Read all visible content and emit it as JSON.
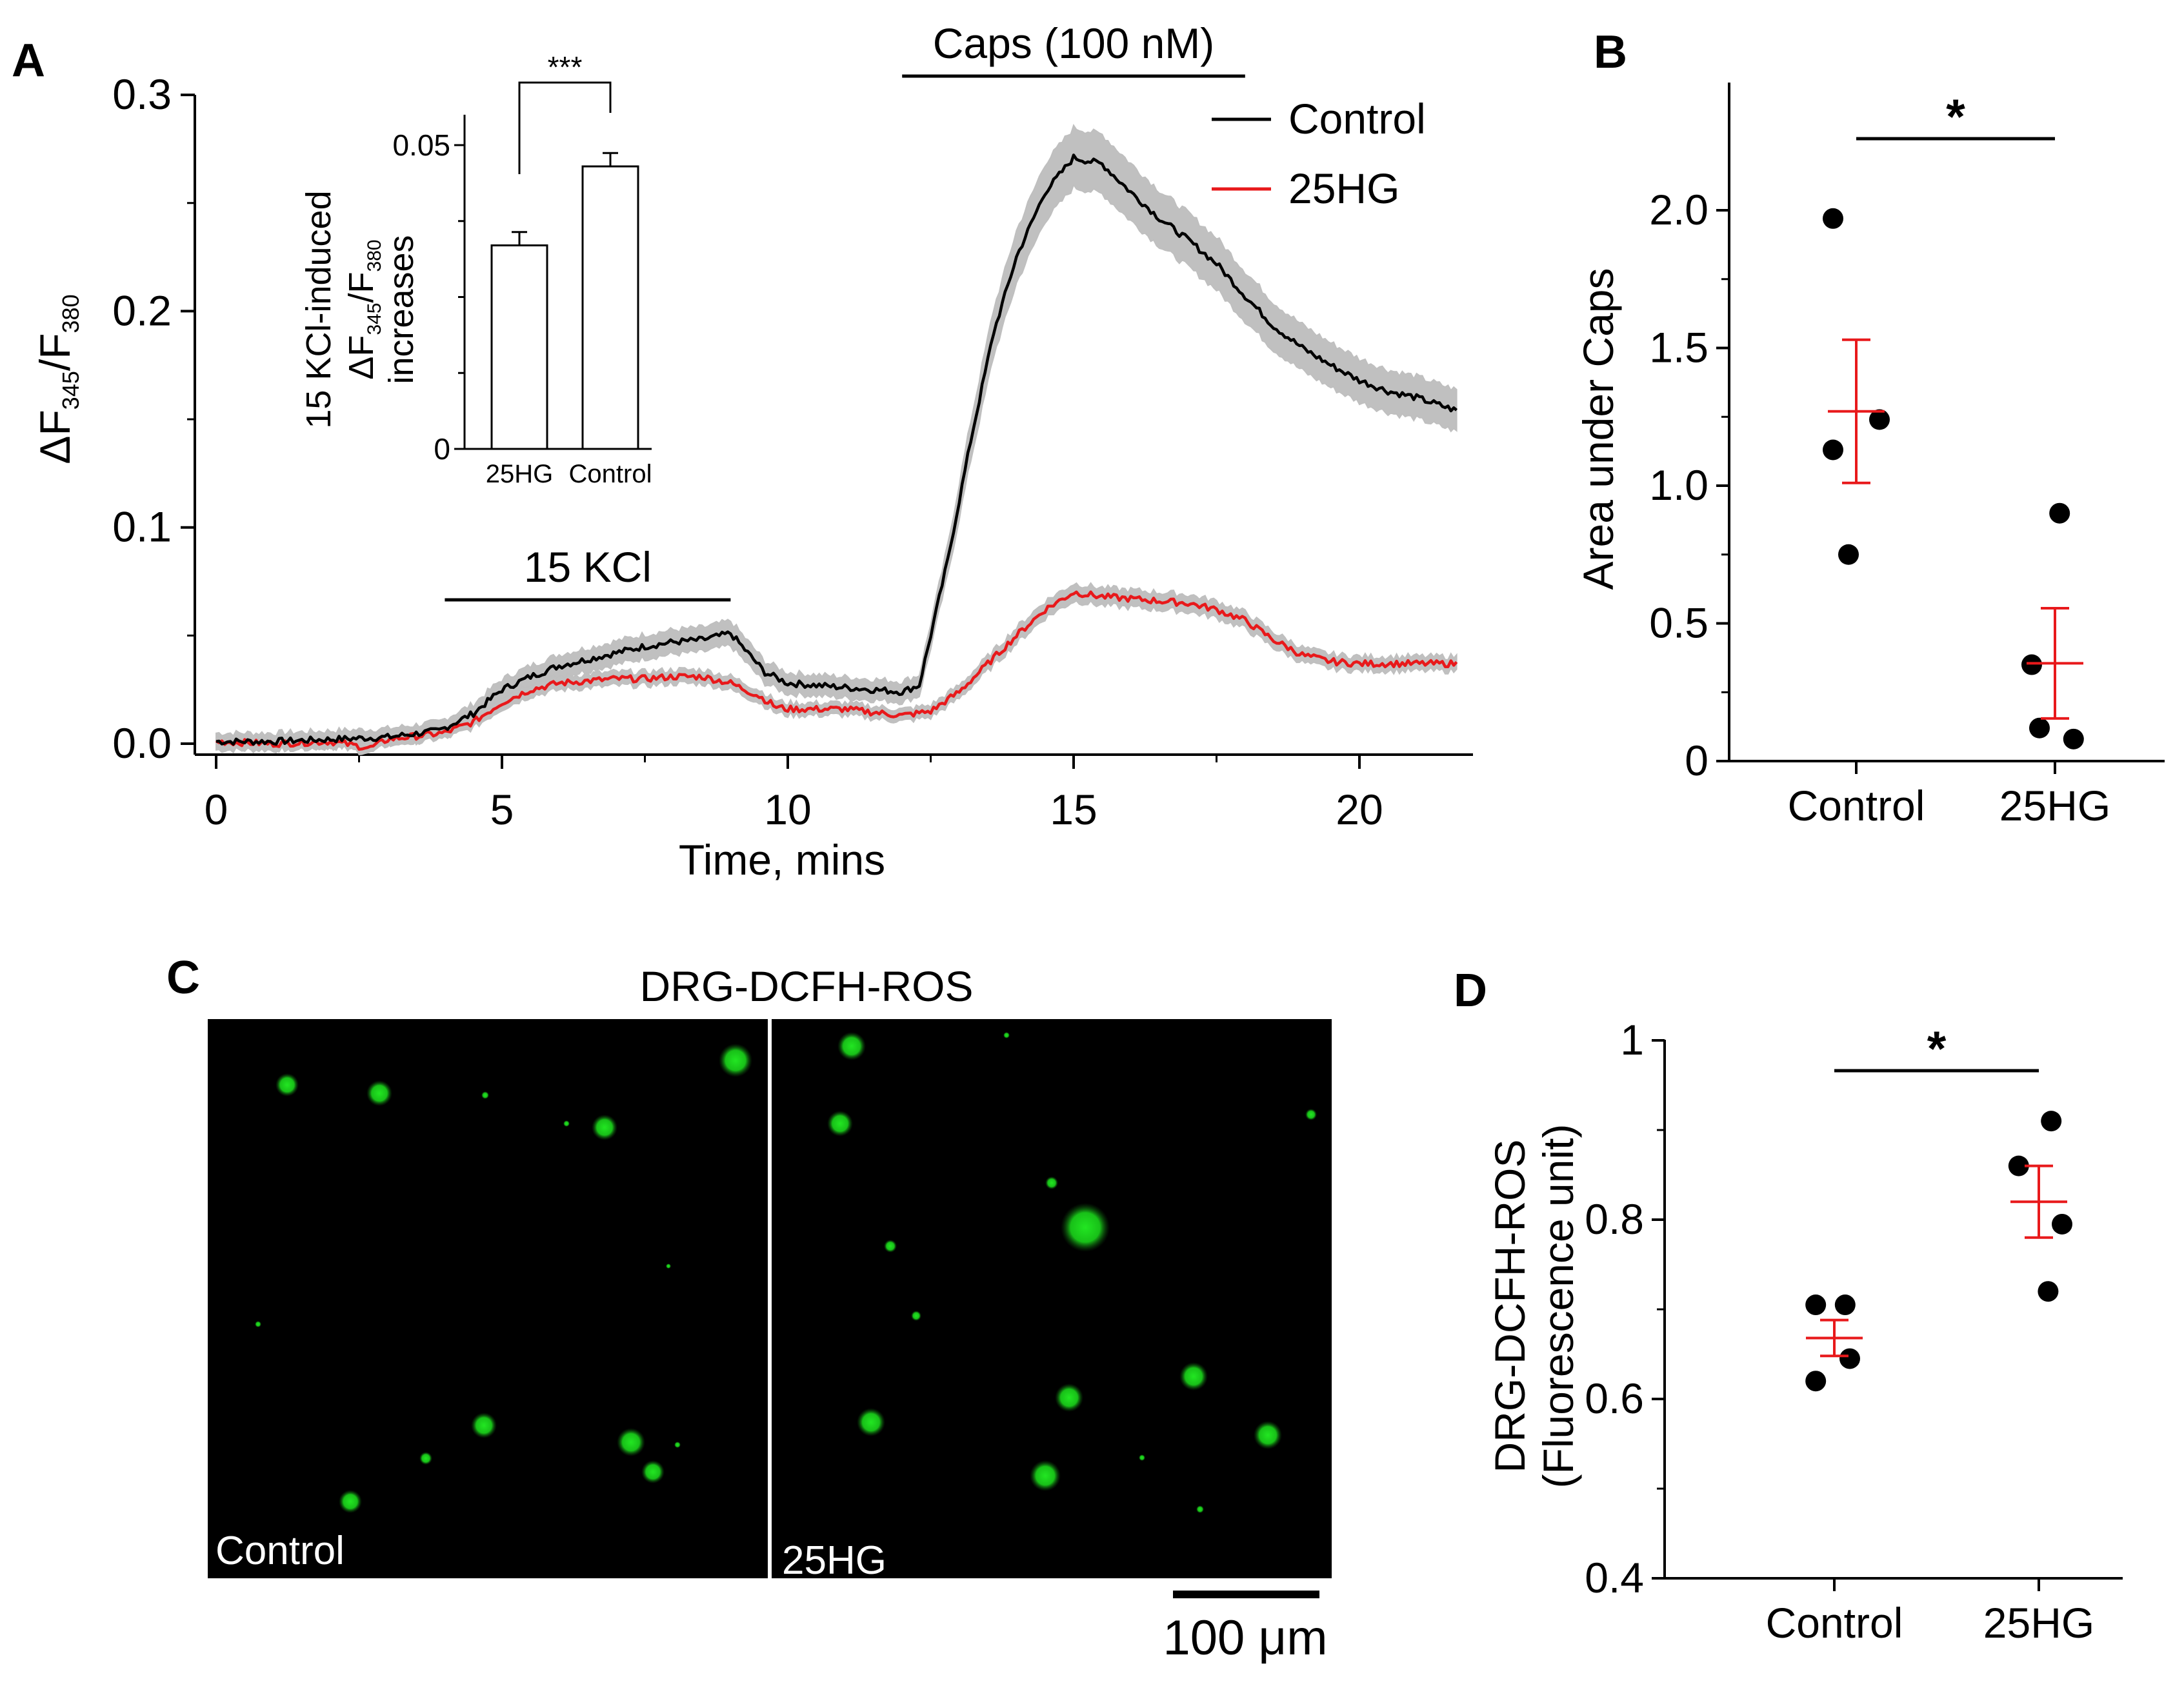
{
  "panels": {
    "A": {
      "letter": "A",
      "y_label_main": "ΔF",
      "y_label_sub1": "345",
      "y_label_sep": "/F",
      "y_label_sub2": "380",
      "x_label": "Time, mins",
      "kcl_label": "15 KCl",
      "caps_label": "Caps (100 nM)"
    },
    "B": {
      "letter": "B",
      "y_label": "Area under Caps",
      "sig": "*"
    },
    "C": {
      "letter": "C",
      "title": "DRG-DCFH-ROS",
      "left_label": "Control",
      "right_label": "25HG",
      "scale_label": "100 μm"
    },
    "D": {
      "letter": "D",
      "y_label_1": "DRG-DCFH-ROS",
      "y_label_2": "(Fluorescence unit)",
      "sig": "*"
    }
  },
  "colors": {
    "control": "#000000",
    "hg": "#e8191b",
    "sem_band": "#c0c0c0",
    "green": "#19d219"
  },
  "chart_data": [
    {
      "id": "A-main",
      "type": "line",
      "xlabel": "Time, mins",
      "ylabel": "ΔF345/F380",
      "xlim": [
        -0.3,
        22
      ],
      "ylim": [
        -0.01,
        0.3
      ],
      "xticks": [
        0,
        5,
        10,
        15,
        20
      ],
      "yticks": [
        0.0,
        0.1,
        0.2,
        0.3
      ],
      "ytick_labels": [
        "0.0",
        "0.1",
        "0.2",
        "0.3"
      ],
      "legend": "top-right",
      "annotations": [
        {
          "label": "15 KCl",
          "x_start": 4.0,
          "x_end": 9.0
        },
        {
          "label": "Caps (100 nM)",
          "x_start": 12.0,
          "x_end": 18.0
        }
      ],
      "series": [
        {
          "name": "Control",
          "color": "#000000",
          "sem": 0.011,
          "points": [
            [
              0,
              0.001
            ],
            [
              1,
              0.001
            ],
            [
              2,
              0.002
            ],
            [
              3,
              0.003
            ],
            [
              3.9,
              0.006
            ],
            [
              4.5,
              0.014
            ],
            [
              5,
              0.025
            ],
            [
              5.5,
              0.031
            ],
            [
              6,
              0.036
            ],
            [
              6.5,
              0.039
            ],
            [
              7,
              0.042
            ],
            [
              7.5,
              0.045
            ],
            [
              8,
              0.047
            ],
            [
              8.5,
              0.048
            ],
            [
              9,
              0.051
            ],
            [
              9.3,
              0.042
            ],
            [
              9.6,
              0.033
            ],
            [
              10,
              0.028
            ],
            [
              11,
              0.026
            ],
            [
              12,
              0.024
            ],
            [
              12.3,
              0.027
            ],
            [
              12.5,
              0.05
            ],
            [
              12.8,
              0.085
            ],
            [
              13.2,
              0.14
            ],
            [
              13.6,
              0.19
            ],
            [
              14,
              0.225
            ],
            [
              14.5,
              0.255
            ],
            [
              15,
              0.271
            ],
            [
              15.5,
              0.268
            ],
            [
              16,
              0.255
            ],
            [
              16.5,
              0.243
            ],
            [
              17,
              0.233
            ],
            [
              17.5,
              0.222
            ],
            [
              18,
              0.207
            ],
            [
              18.5,
              0.193
            ],
            [
              19,
              0.183
            ],
            [
              19.5,
              0.175
            ],
            [
              20,
              0.168
            ],
            [
              20.5,
              0.163
            ],
            [
              21,
              0.16
            ],
            [
              21.7,
              0.154
            ]
          ]
        },
        {
          "name": "25HG",
          "color": "#e8191b",
          "sem": 0.007,
          "points": [
            [
              0,
              0.001
            ],
            [
              1,
              0.0
            ],
            [
              2,
              0.001
            ],
            [
              2.7,
              -0.002
            ],
            [
              3,
              0.002
            ],
            [
              4,
              0.005
            ],
            [
              4.5,
              0.01
            ],
            [
              5,
              0.019
            ],
            [
              5.5,
              0.025
            ],
            [
              6,
              0.028
            ],
            [
              6.5,
              0.029
            ],
            [
              7,
              0.03
            ],
            [
              7.5,
              0.03
            ],
            [
              8,
              0.031
            ],
            [
              8.5,
              0.031
            ],
            [
              9,
              0.028
            ],
            [
              9.5,
              0.022
            ],
            [
              9.8,
              0.017
            ],
            [
              10,
              0.016
            ],
            [
              11,
              0.016
            ],
            [
              12,
              0.013
            ],
            [
              12.5,
              0.015
            ],
            [
              13,
              0.024
            ],
            [
              13.5,
              0.037
            ],
            [
              14,
              0.05
            ],
            [
              14.5,
              0.062
            ],
            [
              15,
              0.07
            ],
            [
              15.5,
              0.068
            ],
            [
              16,
              0.067
            ],
            [
              16.5,
              0.066
            ],
            [
              17,
              0.065
            ],
            [
              17.5,
              0.062
            ],
            [
              18,
              0.057
            ],
            [
              18.5,
              0.048
            ],
            [
              19,
              0.041
            ],
            [
              19.5,
              0.038
            ],
            [
              20,
              0.037
            ],
            [
              21,
              0.037
            ],
            [
              21.7,
              0.037
            ]
          ]
        }
      ]
    },
    {
      "id": "A-inset",
      "type": "bar",
      "ylabel_lines": [
        "15 KCl-induced",
        "ΔF345/F380",
        "increases"
      ],
      "categories": [
        "25HG",
        "Control"
      ],
      "values": [
        0.0335,
        0.0465
      ],
      "errors": [
        0.0022,
        0.0022
      ],
      "ylim": [
        0,
        0.055
      ],
      "yticks": [
        0,
        0.05
      ],
      "ytick_labels": [
        "0",
        "0.05"
      ],
      "significance": "***"
    },
    {
      "id": "B",
      "type": "scatter",
      "ylabel": "Area under Caps",
      "categories": [
        "Control",
        "25HG"
      ],
      "ylim": [
        0,
        2.4
      ],
      "yticks": [
        0,
        0.5,
        1.0,
        1.5,
        2.0
      ],
      "ytick_labels": [
        "0",
        "0.5",
        "1.0",
        "1.5",
        "2.0"
      ],
      "points": [
        {
          "group": "Control",
          "offsets": [
            -0.15,
            0.15,
            -0.15,
            -0.05
          ],
          "values": [
            1.97,
            1.24,
            1.13,
            0.75
          ]
        },
        {
          "group": "25HG",
          "offsets": [
            0.03,
            -0.15,
            -0.1,
            0.12
          ],
          "values": [
            0.9,
            0.35,
            0.12,
            0.08
          ]
        }
      ],
      "means": [
        1.27,
        0.355
      ],
      "sems": [
        0.26,
        0.2
      ],
      "significance": "*"
    },
    {
      "id": "D",
      "type": "scatter",
      "ylabel": "DRG-DCFH-ROS (Fluorescence unit)",
      "categories": [
        "Control",
        "25HG"
      ],
      "ylim": [
        0.4,
        1.0
      ],
      "yticks": [
        0.4,
        0.6,
        0.8,
        1.0
      ],
      "ytick_labels": [
        "0.4",
        "0.6",
        "0.8",
        "1"
      ],
      "points": [
        {
          "group": "Control",
          "offsets": [
            -0.12,
            0.07,
            0.1,
            -0.12
          ],
          "values": [
            0.705,
            0.705,
            0.645,
            0.62
          ]
        },
        {
          "group": "25HG",
          "offsets": [
            -0.13,
            0.08,
            0.15,
            0.06
          ],
          "values": [
            0.86,
            0.91,
            0.795,
            0.72
          ]
        }
      ],
      "means": [
        0.668,
        0.82
      ],
      "sems": [
        0.02,
        0.04
      ],
      "significance": "*"
    }
  ]
}
